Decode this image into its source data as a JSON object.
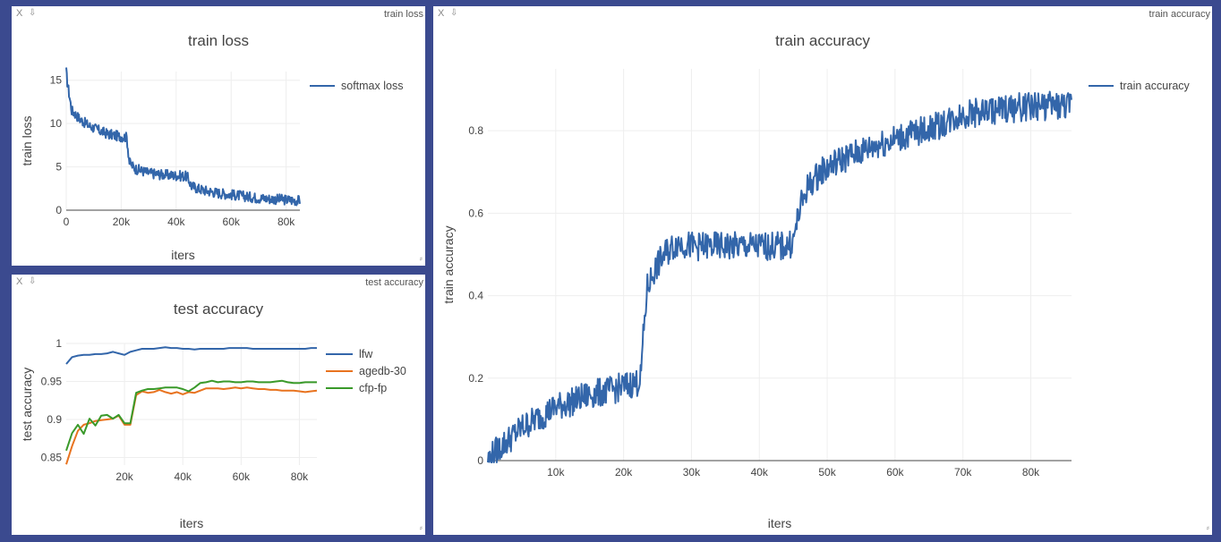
{
  "panes": {
    "train_loss": {
      "close": "X",
      "download": "⇩",
      "title_tag": "train loss",
      "resize": "⸗"
    },
    "test_accuracy": {
      "close": "X",
      "download": "⇩",
      "title_tag": "test accuracy",
      "resize": "⸗"
    },
    "train_accuracy": {
      "close": "X",
      "download": "⇩",
      "title_tag": "train accuracy",
      "resize": "⸗"
    }
  },
  "colors": {
    "blue": "#3366aa",
    "orange": "#e8731f",
    "green": "#3a9a2a",
    "axis": "#444444",
    "grid": "#eeeeee"
  },
  "chart_data": [
    {
      "id": "train_loss",
      "type": "line",
      "title": "train loss",
      "xlabel": "iters",
      "ylabel": "train loss",
      "xlim": [
        0,
        85000
      ],
      "ylim": [
        0,
        16
      ],
      "xticks": [
        0,
        20000,
        40000,
        60000,
        80000
      ],
      "xtick_labels": [
        "0",
        "20k",
        "40k",
        "60k",
        "80k"
      ],
      "yticks": [
        0,
        5,
        10,
        15
      ],
      "ytick_labels": [
        "0",
        "5",
        "10",
        "15"
      ],
      "grid": true,
      "legend": "top-right",
      "series": [
        {
          "name": "softmax loss",
          "color": "#3366aa",
          "x": [
            0,
            300,
            1000,
            2000,
            3000,
            5000,
            8000,
            10000,
            12000,
            15000,
            18000,
            20000,
            22000,
            23000,
            25000,
            28000,
            30000,
            35000,
            40000,
            44000,
            45500,
            48000,
            50000,
            55000,
            60000,
            65000,
            70000,
            75000,
            80000,
            85000
          ],
          "y": [
            16,
            15,
            13.5,
            11.5,
            11.2,
            10.5,
            9.8,
            9.5,
            9.2,
            8.8,
            8.6,
            8.5,
            8.4,
            5.5,
            4.8,
            4.5,
            4.3,
            4.1,
            4.0,
            3.9,
            2.8,
            2.5,
            2.3,
            2.0,
            1.8,
            1.6,
            1.4,
            1.3,
            1.2,
            1.1
          ],
          "noise": 0.6
        }
      ]
    },
    {
      "id": "test_accuracy",
      "type": "line",
      "title": "test accuracy",
      "xlabel": "iters",
      "ylabel": "test accuracy",
      "xlim": [
        0,
        86000
      ],
      "ylim": [
        0.84,
        1.0
      ],
      "xticks": [
        20000,
        40000,
        60000,
        80000
      ],
      "xtick_labels": [
        "20k",
        "40k",
        "60k",
        "80k"
      ],
      "yticks": [
        0.85,
        0.9,
        0.95,
        1
      ],
      "ytick_labels": [
        "0.85",
        "0.9",
        "0.95",
        "1"
      ],
      "grid": true,
      "legend": "top-right",
      "series": [
        {
          "name": "lfw",
          "color": "#3366aa",
          "x": [
            0,
            2000,
            4000,
            6000,
            8000,
            10000,
            12000,
            14000,
            16000,
            18000,
            20000,
            22000,
            24000,
            26000,
            28000,
            30000,
            32000,
            34000,
            36000,
            38000,
            40000,
            42000,
            44000,
            46000,
            48000,
            50000,
            52000,
            54000,
            56000,
            58000,
            60000,
            62000,
            64000,
            66000,
            68000,
            70000,
            72000,
            74000,
            76000,
            78000,
            80000,
            82000,
            84000,
            86000
          ],
          "y": [
            0.973,
            0.982,
            0.984,
            0.985,
            0.985,
            0.986,
            0.986,
            0.987,
            0.989,
            0.987,
            0.985,
            0.989,
            0.991,
            0.993,
            0.993,
            0.993,
            0.994,
            0.995,
            0.994,
            0.994,
            0.993,
            0.993,
            0.992,
            0.993,
            0.993,
            0.993,
            0.993,
            0.993,
            0.994,
            0.994,
            0.994,
            0.994,
            0.993,
            0.993,
            0.993,
            0.993,
            0.993,
            0.993,
            0.993,
            0.993,
            0.993,
            0.993,
            0.994,
            0.994
          ]
        },
        {
          "name": "agedb-30",
          "color": "#e8731f",
          "x": [
            0,
            2000,
            4000,
            6000,
            8000,
            10000,
            12000,
            14000,
            16000,
            18000,
            20000,
            22000,
            24000,
            26000,
            28000,
            30000,
            32000,
            34000,
            36000,
            38000,
            40000,
            42000,
            44000,
            46000,
            48000,
            50000,
            52000,
            54000,
            56000,
            58000,
            60000,
            62000,
            64000,
            66000,
            68000,
            70000,
            72000,
            74000,
            76000,
            78000,
            80000,
            82000,
            84000,
            86000
          ],
          "y": [
            0.841,
            0.865,
            0.885,
            0.893,
            0.895,
            0.898,
            0.899,
            0.9,
            0.901,
            0.905,
            0.893,
            0.893,
            0.932,
            0.937,
            0.935,
            0.936,
            0.939,
            0.936,
            0.934,
            0.936,
            0.933,
            0.936,
            0.935,
            0.938,
            0.941,
            0.941,
            0.941,
            0.94,
            0.941,
            0.942,
            0.941,
            0.942,
            0.941,
            0.94,
            0.94,
            0.939,
            0.939,
            0.938,
            0.938,
            0.938,
            0.937,
            0.936,
            0.937,
            0.938
          ]
        },
        {
          "name": "cfp-fp",
          "color": "#3a9a2a",
          "x": [
            0,
            2000,
            4000,
            6000,
            8000,
            10000,
            12000,
            14000,
            16000,
            18000,
            20000,
            22000,
            24000,
            26000,
            28000,
            30000,
            32000,
            34000,
            36000,
            38000,
            40000,
            42000,
            44000,
            46000,
            48000,
            50000,
            52000,
            54000,
            56000,
            58000,
            60000,
            62000,
            64000,
            66000,
            68000,
            70000,
            72000,
            74000,
            76000,
            78000,
            80000,
            82000,
            84000,
            86000
          ],
          "y": [
            0.859,
            0.882,
            0.893,
            0.881,
            0.901,
            0.892,
            0.905,
            0.906,
            0.901,
            0.906,
            0.895,
            0.895,
            0.935,
            0.938,
            0.94,
            0.94,
            0.941,
            0.942,
            0.942,
            0.942,
            0.94,
            0.937,
            0.942,
            0.948,
            0.949,
            0.951,
            0.949,
            0.95,
            0.95,
            0.949,
            0.949,
            0.95,
            0.95,
            0.949,
            0.949,
            0.949,
            0.95,
            0.951,
            0.949,
            0.948,
            0.948,
            0.949,
            0.949,
            0.949
          ]
        }
      ]
    },
    {
      "id": "train_accuracy",
      "type": "line",
      "title": "train accuracy",
      "xlabel": "iters",
      "ylabel": "train accuracy",
      "xlim": [
        0,
        86000
      ],
      "ylim": [
        0,
        0.95
      ],
      "xticks": [
        10000,
        20000,
        30000,
        40000,
        50000,
        60000,
        70000,
        80000
      ],
      "xtick_labels": [
        "10k",
        "20k",
        "30k",
        "40k",
        "50k",
        "60k",
        "70k",
        "80k"
      ],
      "yticks": [
        0,
        0.2,
        0.4,
        0.6,
        0.8
      ],
      "ytick_labels": [
        "0",
        "0.2",
        "0.4",
        "0.6",
        "0.8"
      ],
      "grid": true,
      "legend": "top-right",
      "series": [
        {
          "name": "train accuracy",
          "color": "#3366aa",
          "x": [
            0,
            1000,
            3000,
            5000,
            8000,
            10000,
            12000,
            15000,
            18000,
            20000,
            22000,
            22500,
            23000,
            23500,
            24500,
            26000,
            28000,
            30000,
            33000,
            36000,
            39000,
            42000,
            44000,
            45000,
            45800,
            47000,
            49000,
            52000,
            55000,
            58000,
            62000,
            66000,
            70000,
            75000,
            80000,
            86000
          ],
          "y": [
            0,
            0.02,
            0.05,
            0.08,
            0.11,
            0.13,
            0.14,
            0.16,
            0.17,
            0.18,
            0.19,
            0.2,
            0.32,
            0.42,
            0.46,
            0.5,
            0.53,
            0.52,
            0.52,
            0.52,
            0.52,
            0.52,
            0.52,
            0.53,
            0.6,
            0.66,
            0.7,
            0.73,
            0.75,
            0.77,
            0.79,
            0.81,
            0.84,
            0.85,
            0.86,
            0.86
          ],
          "noise": 0.035
        }
      ]
    }
  ]
}
